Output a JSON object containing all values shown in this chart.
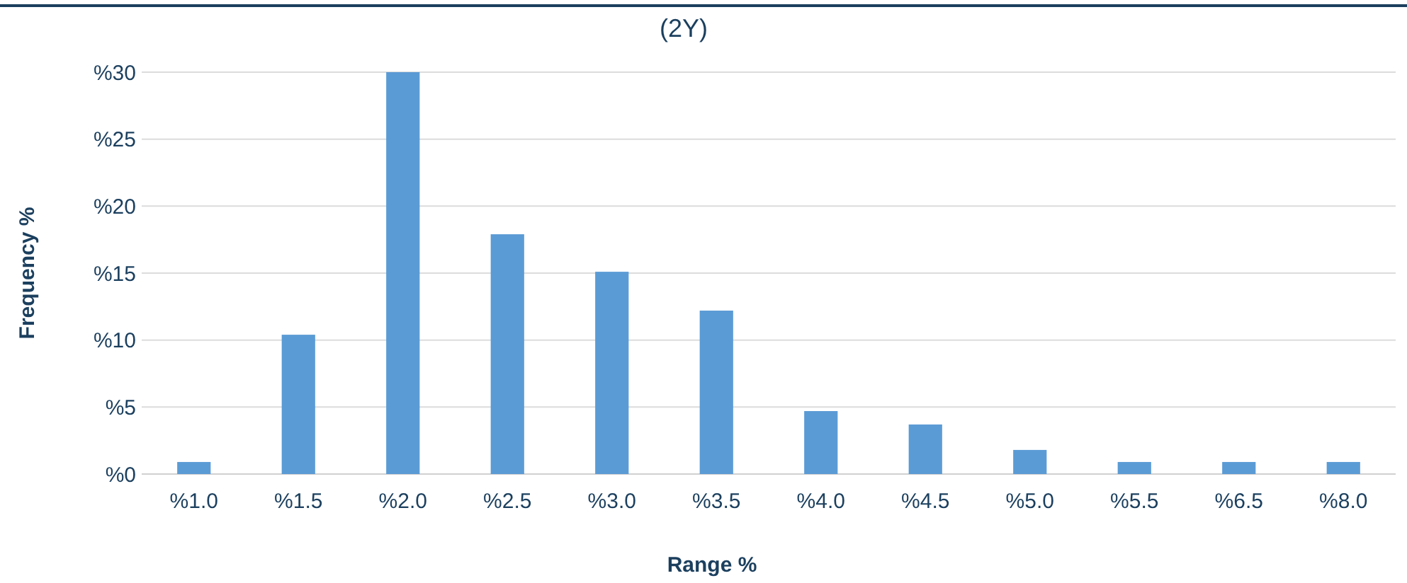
{
  "chart_data": {
    "type": "bar",
    "title": "(2Y)",
    "xlabel": "Range %",
    "ylabel": "Frequency %",
    "categories": [
      "%1.0",
      "%1.5",
      "%2.0",
      "%2.5",
      "%3.0",
      "%3.5",
      "%4.0",
      "%4.5",
      "%5.0",
      "%5.5",
      "%6.5",
      "%8.0"
    ],
    "values": [
      0.9,
      10.4,
      30,
      17.9,
      15.1,
      12.2,
      4.7,
      3.7,
      1.8,
      0.9,
      0.9,
      0.9
    ],
    "color": "#5b9bd5",
    "ylim": [
      0,
      30
    ],
    "yticks": [
      {
        "value": 0,
        "label": "%0"
      },
      {
        "value": 5,
        "label": "%5"
      },
      {
        "value": 10,
        "label": "%10"
      },
      {
        "value": 15,
        "label": "%15"
      },
      {
        "value": 20,
        "label": "%20"
      },
      {
        "value": 25,
        "label": "%25"
      },
      {
        "value": 30,
        "label": "%30"
      }
    ],
    "grid": "y"
  }
}
